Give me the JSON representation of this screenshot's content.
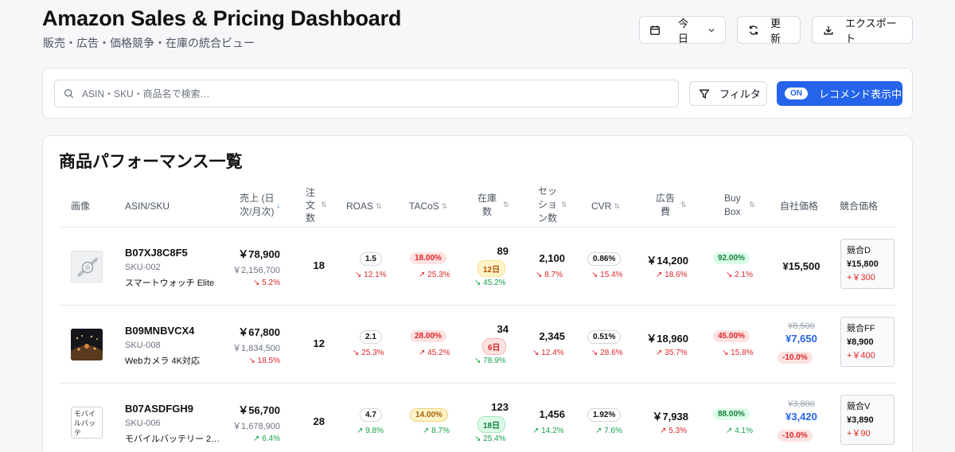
{
  "header": {
    "title": "Amazon Sales & Pricing Dashboard",
    "subtitle": "販売・広告・価格競争・在庫の統合ビュー",
    "date_range": "今日",
    "refresh_label": "更新",
    "export_label": "エクスポート"
  },
  "search": {
    "placeholder": "ASIN・SKU・商品名で検索…",
    "filter_label": "フィルタ",
    "recommend_pill": "ON",
    "recommend_label": "レコメンド表示中"
  },
  "table": {
    "title": "商品パフォーマンス一覧",
    "columns": {
      "image": "画像",
      "asin": "ASIN/SKU",
      "sales_1": "売上 (日",
      "sales_2": "次/月次)",
      "orders_1": "注",
      "orders_2": "文",
      "orders_3": "数",
      "roas": "ROAS",
      "tacos": "TACoS",
      "stock_1": "在庫",
      "stock_2": "数",
      "sessions_1": "セッ",
      "sessions_2": "ショ",
      "sessions_3": "ン数",
      "cvr": "CVR",
      "adcost_1": "広告",
      "adcost_2": "費",
      "buybox_1": "Buy",
      "buybox_2": "Box",
      "own_price": "自社価格",
      "comp_price": "競合価格"
    },
    "rows": [
      {
        "image_icon": "smartwatch-image",
        "asin": "B07XJ8C8F5",
        "sku": "SKU-002",
        "name": "スマートウォッチ Elite",
        "sales_daily": "￥78,900",
        "sales_monthly": "￥2,156,700",
        "sales_change": "5.2%",
        "orders": "18",
        "roas": "1.5",
        "roas_change": "12.1%",
        "tacos": "18.00%",
        "tacos_change": "25.3%",
        "stock": "89",
        "stock_days": "12日",
        "stock_change": "45.2%",
        "sessions": "2,100",
        "sessions_change": "8.7%",
        "cvr": "0.86%",
        "cvr_change": "15.4%",
        "ad_cost": "￥14,200",
        "ad_cost_change": "18.6%",
        "buybox": "92.00%",
        "buybox_change": "2.1%",
        "own_price": "¥15,500",
        "competitor": "競合D",
        "competitor_price": "¥15,800",
        "competitor_diff": "+￥300"
      },
      {
        "image_icon": "webcam-image",
        "asin": "B09MNBVCX4",
        "sku": "SKU-008",
        "name": "Webカメラ 4K対応",
        "sales_daily": "￥67,800",
        "sales_monthly": "￥1,834,500",
        "sales_change": "18.5%",
        "orders": "12",
        "roas": "2.1",
        "roas_change": "25.3%",
        "tacos": "28.00%",
        "tacos_change": "45.2%",
        "stock": "34",
        "stock_days": "6日",
        "stock_change": "78.9%",
        "sessions": "2,345",
        "sessions_change": "12.4%",
        "cvr": "0.51%",
        "cvr_change": "28.6%",
        "ad_cost": "￥18,960",
        "ad_cost_change": "35.7%",
        "buybox": "45.00%",
        "buybox_change": "15.8%",
        "own_price_old": "¥8,500",
        "own_price": "¥7,650",
        "own_price_discount": "-10.0%",
        "competitor": "競合FF",
        "competitor_price": "¥8,900",
        "competitor_diff": "+￥400"
      },
      {
        "image_icon": "battery-image-broken",
        "image_alt": "モバイルバッテ",
        "asin": "B07ASDFGH9",
        "sku": "SKU-006",
        "name": "モバイルバッテリー 2…",
        "sales_daily": "￥56,700",
        "sales_monthly": "￥1,678,900",
        "sales_change": "6.4%",
        "orders": "28",
        "roas": "4.7",
        "roas_change": "9.8%",
        "tacos": "14.00%",
        "tacos_change": "8.7%",
        "stock": "123",
        "stock_days": "18日",
        "stock_change": "25.4%",
        "sessions": "1,456",
        "sessions_change": "14.2%",
        "cvr": "1.92%",
        "cvr_change": "7.6%",
        "ad_cost": "￥7,938",
        "ad_cost_change": "5.3%",
        "buybox": "88.00%",
        "buybox_change": "4.1%",
        "own_price_old": "¥3,800",
        "own_price": "¥3,420",
        "own_price_discount": "-10.0%",
        "competitor": "競合V",
        "competitor_price": "¥3,890",
        "competitor_diff": "+￥90"
      }
    ]
  },
  "colors": {
    "accent": "#2563eb",
    "positive": "#16a34a",
    "negative": "#dc2626"
  }
}
